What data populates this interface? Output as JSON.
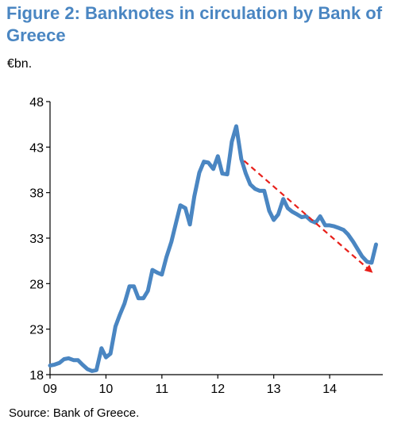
{
  "header": {
    "title": "Figure 2: Banknotes in circulation by Bank of Greece",
    "unit": "€bn."
  },
  "footer": {
    "source": "Source: Bank of Greece."
  },
  "colors": {
    "title": "#4A86C2",
    "series": "#4A86C2",
    "trend_arrow": "#E8201A",
    "axis": "#000000"
  },
  "chart_data": {
    "type": "line",
    "title": "Figure 2: Banknotes in circulation by Bank of Greece",
    "ylabel": "€bn.",
    "xlabel": "",
    "ylim": [
      18,
      48
    ],
    "yticks": [
      18,
      23,
      28,
      33,
      38,
      43,
      48
    ],
    "xlim": [
      2009.0,
      2014.95
    ],
    "xticks": [
      {
        "value": 2009,
        "label": "09"
      },
      {
        "value": 2010,
        "label": "10"
      },
      {
        "value": 2011,
        "label": "11"
      },
      {
        "value": 2012,
        "label": "12"
      },
      {
        "value": 2013,
        "label": "13"
      },
      {
        "value": 2014,
        "label": "14"
      }
    ],
    "grid": false,
    "legend": "none",
    "series": [
      {
        "points": [
          [
            2009.0,
            19.0
          ],
          [
            2009.08,
            19.1
          ],
          [
            2009.17,
            19.3
          ],
          [
            2009.25,
            19.7
          ],
          [
            2009.33,
            19.8
          ],
          [
            2009.42,
            19.6
          ],
          [
            2009.5,
            19.6
          ],
          [
            2009.58,
            19.1
          ],
          [
            2009.67,
            18.6
          ],
          [
            2009.75,
            18.4
          ],
          [
            2009.83,
            18.5
          ],
          [
            2009.92,
            20.9
          ],
          [
            2010.0,
            19.9
          ],
          [
            2010.08,
            20.3
          ],
          [
            2010.17,
            23.3
          ],
          [
            2010.25,
            24.6
          ],
          [
            2010.33,
            25.8
          ],
          [
            2010.42,
            27.7
          ],
          [
            2010.5,
            27.7
          ],
          [
            2010.58,
            26.4
          ],
          [
            2010.67,
            26.4
          ],
          [
            2010.75,
            27.2
          ],
          [
            2010.83,
            29.5
          ],
          [
            2010.92,
            29.2
          ],
          [
            2011.0,
            29.0
          ],
          [
            2011.08,
            30.9
          ],
          [
            2011.17,
            32.6
          ],
          [
            2011.25,
            34.6
          ],
          [
            2011.33,
            36.6
          ],
          [
            2011.42,
            36.3
          ],
          [
            2011.5,
            34.5
          ],
          [
            2011.58,
            37.6
          ],
          [
            2011.67,
            40.2
          ],
          [
            2011.75,
            41.4
          ],
          [
            2011.83,
            41.3
          ],
          [
            2011.92,
            40.6
          ],
          [
            2012.0,
            42.0
          ],
          [
            2012.08,
            40.1
          ],
          [
            2012.17,
            40.0
          ],
          [
            2012.25,
            43.6
          ],
          [
            2012.33,
            45.3
          ],
          [
            2012.42,
            41.7
          ],
          [
            2012.5,
            40.1
          ],
          [
            2012.58,
            38.9
          ],
          [
            2012.67,
            38.4
          ],
          [
            2012.75,
            38.2
          ],
          [
            2012.83,
            38.2
          ],
          [
            2012.92,
            36.0
          ],
          [
            2013.0,
            35.0
          ],
          [
            2013.08,
            35.6
          ],
          [
            2013.17,
            37.3
          ],
          [
            2013.25,
            36.3
          ],
          [
            2013.33,
            35.9
          ],
          [
            2013.42,
            35.6
          ],
          [
            2013.5,
            35.3
          ],
          [
            2013.58,
            35.4
          ],
          [
            2013.67,
            34.9
          ],
          [
            2013.75,
            34.7
          ],
          [
            2013.83,
            35.4
          ],
          [
            2013.92,
            34.4
          ],
          [
            2014.0,
            34.4
          ],
          [
            2014.08,
            34.3
          ],
          [
            2014.17,
            34.1
          ],
          [
            2014.25,
            33.9
          ],
          [
            2014.33,
            33.4
          ],
          [
            2014.42,
            32.6
          ],
          [
            2014.5,
            31.8
          ],
          [
            2014.58,
            31.0
          ],
          [
            2014.67,
            30.4
          ],
          [
            2014.75,
            30.3
          ],
          [
            2014.83,
            32.3
          ]
        ]
      }
    ],
    "annotations": [
      {
        "type": "dashed-arrow",
        "from": [
          2012.47,
          41.5
        ],
        "to": [
          2014.75,
          29.3
        ]
      }
    ]
  }
}
